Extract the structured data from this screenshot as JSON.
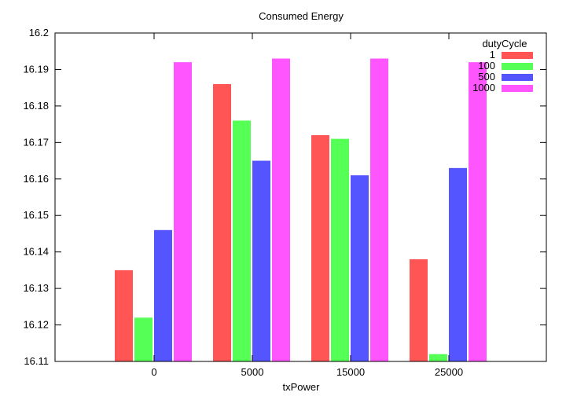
{
  "chart_data": {
    "type": "bar",
    "title": "Consumed Energy",
    "xlabel": "txPower",
    "ylabel": "",
    "categories": [
      "0",
      "5000",
      "15000",
      "25000"
    ],
    "legend_title": "dutyCycle",
    "legend_position": "top-right",
    "ylim": [
      16.11,
      16.2
    ],
    "yticks": [
      "16.11",
      "16.12",
      "16.13",
      "16.14",
      "16.15",
      "16.16",
      "16.17",
      "16.18",
      "16.19",
      "16.2"
    ],
    "grid": false,
    "series": [
      {
        "name": "1",
        "color": "#ff5555",
        "values": [
          16.135,
          16.186,
          16.172,
          16.138
        ]
      },
      {
        "name": "100",
        "color": "#55ff55",
        "values": [
          16.122,
          16.176,
          16.171,
          16.112
        ]
      },
      {
        "name": "500",
        "color": "#5555ff",
        "values": [
          16.146,
          16.165,
          16.161,
          16.163
        ]
      },
      {
        "name": "1000",
        "color": "#ff55ff",
        "values": [
          16.192,
          16.193,
          16.193,
          16.192
        ]
      }
    ]
  }
}
